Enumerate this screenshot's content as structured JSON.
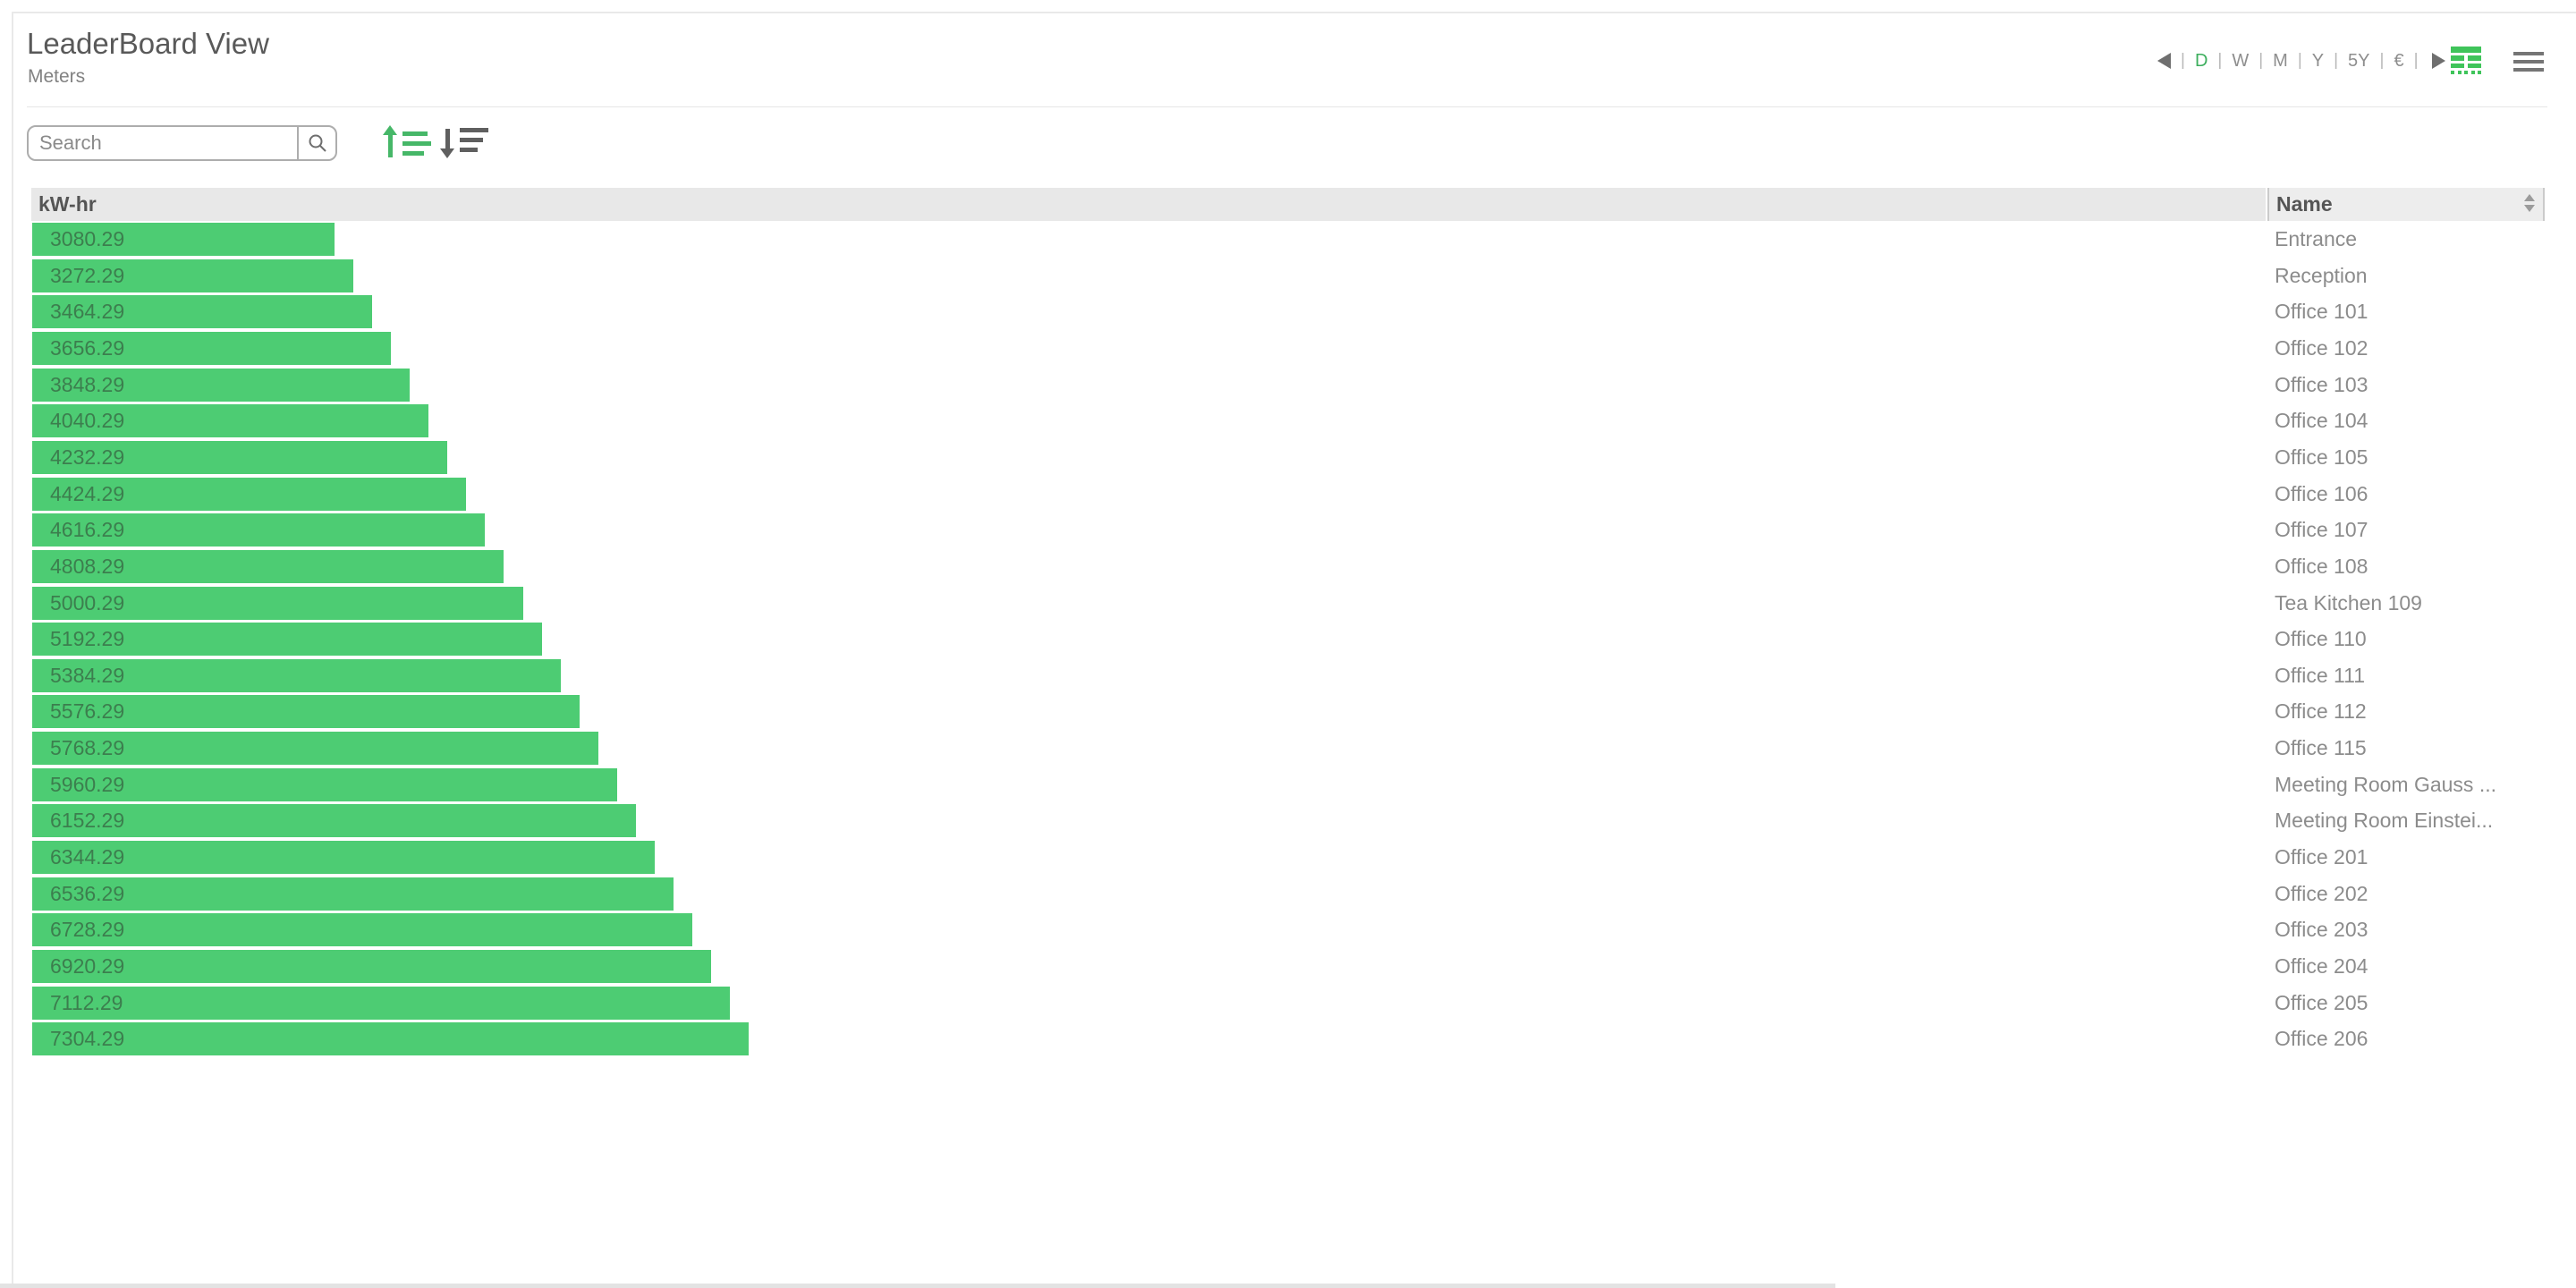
{
  "page": {
    "title": "LeaderBoard View",
    "subtitle": "Meters"
  },
  "toolbar": {
    "search_placeholder": "Search",
    "search_value": ""
  },
  "timebar": {
    "options": [
      "D",
      "W",
      "M",
      "Y",
      "5Y",
      "€"
    ],
    "active_option": "D",
    "separator": "|"
  },
  "table": {
    "value_column": "kW-hr",
    "name_column": "Name",
    "rows": [
      {
        "value": "3080.29",
        "name": "Entrance"
      },
      {
        "value": "3272.29",
        "name": "Reception"
      },
      {
        "value": "3464.29",
        "name": "Office 101"
      },
      {
        "value": "3656.29",
        "name": "Office 102"
      },
      {
        "value": "3848.29",
        "name": "Office 103"
      },
      {
        "value": "4040.29",
        "name": "Office 104"
      },
      {
        "value": "4232.29",
        "name": "Office 105"
      },
      {
        "value": "4424.29",
        "name": "Office 106"
      },
      {
        "value": "4616.29",
        "name": "Office 107"
      },
      {
        "value": "4808.29",
        "name": "Office 108"
      },
      {
        "value": "5000.29",
        "name": "Tea Kitchen 109"
      },
      {
        "value": "5192.29",
        "name": "Office 110"
      },
      {
        "value": "5384.29",
        "name": "Office 111"
      },
      {
        "value": "5576.29",
        "name": "Office 112"
      },
      {
        "value": "5768.29",
        "name": "Office 115"
      },
      {
        "value": "5960.29",
        "name": "Meeting Room Gauss ..."
      },
      {
        "value": "6152.29",
        "name": "Meeting Room Einstei..."
      },
      {
        "value": "6344.29",
        "name": "Office 201"
      },
      {
        "value": "6536.29",
        "name": "Office 202"
      },
      {
        "value": "6728.29",
        "name": "Office 203"
      },
      {
        "value": "6920.29",
        "name": "Office 204"
      },
      {
        "value": "7112.29",
        "name": "Office 205"
      },
      {
        "value": "7304.29",
        "name": "Office 206"
      }
    ]
  },
  "chart_data": {
    "type": "bar",
    "orientation": "horizontal",
    "title": "LeaderBoard View",
    "subtitle": "Meters",
    "value_label": "kW-hr",
    "category_label": "Name",
    "categories": [
      "Entrance",
      "Reception",
      "Office 101",
      "Office 102",
      "Office 103",
      "Office 104",
      "Office 105",
      "Office 106",
      "Office 107",
      "Office 108",
      "Tea Kitchen 109",
      "Office 110",
      "Office 111",
      "Office 112",
      "Office 115",
      "Meeting Room Gauss ...",
      "Meeting Room Einstei...",
      "Office 201",
      "Office 202",
      "Office 203",
      "Office 204",
      "Office 205",
      "Office 206"
    ],
    "values": [
      3080.29,
      3272.29,
      3464.29,
      3656.29,
      3848.29,
      4040.29,
      4232.29,
      4424.29,
      4616.29,
      4808.29,
      5000.29,
      5192.29,
      5384.29,
      5576.29,
      5768.29,
      5960.29,
      6152.29,
      6344.29,
      6536.29,
      6728.29,
      6920.29,
      7112.29,
      7304.29
    ],
    "sorted": "ascending",
    "grid": false,
    "legend": false,
    "xlim": [
      0,
      7400
    ]
  },
  "colors": {
    "bar_green": "#4dcc73",
    "accent_green": "#3cae5d",
    "icon_green": "#3fc45a",
    "header_bg": "#e8e8e8",
    "text_gray": "#8c8c8c"
  }
}
